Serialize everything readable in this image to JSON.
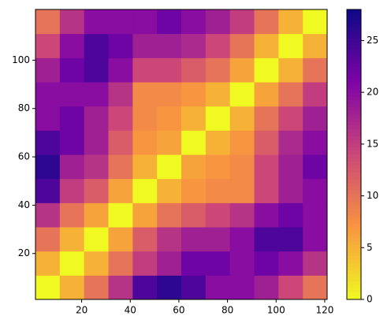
{
  "chart_data": {
    "type": "heatmap",
    "colormap": "plasma_r",
    "x": [
      6,
      16,
      26,
      36,
      46,
      56,
      66,
      76,
      86,
      96,
      106,
      116
    ],
    "y": [
      6,
      16,
      26,
      36,
      46,
      56,
      66,
      76,
      86,
      96,
      106,
      116
    ],
    "z": [
      [
        0,
        5,
        10,
        16,
        24,
        26,
        24,
        20,
        20,
        18,
        14,
        10
      ],
      [
        5,
        0,
        5,
        10,
        15,
        18,
        22,
        22,
        20,
        22,
        20,
        16
      ],
      [
        10,
        5,
        0,
        6,
        12,
        16,
        18,
        18,
        20,
        24,
        24,
        20
      ],
      [
        16,
        10,
        6,
        0,
        6,
        10,
        12,
        14,
        16,
        20,
        22,
        20
      ],
      [
        24,
        15,
        12,
        6,
        0,
        5,
        7,
        8,
        8,
        14,
        18,
        20
      ],
      [
        26,
        18,
        16,
        10,
        5,
        0,
        6,
        7,
        8,
        14,
        18,
        22
      ],
      [
        24,
        22,
        18,
        12,
        7,
        6,
        0,
        5,
        7,
        12,
        17,
        20
      ],
      [
        20,
        22,
        18,
        14,
        8,
        7,
        5,
        0,
        5,
        10,
        14,
        18
      ],
      [
        20,
        20,
        20,
        16,
        8,
        8,
        7,
        5,
        0,
        6,
        10,
        15
      ],
      [
        18,
        22,
        24,
        20,
        14,
        14,
        12,
        10,
        6,
        0,
        5,
        10
      ],
      [
        14,
        20,
        24,
        22,
        18,
        18,
        17,
        14,
        10,
        5,
        0,
        5
      ],
      [
        10,
        16,
        20,
        20,
        20,
        22,
        20,
        18,
        15,
        10,
        5,
        0
      ]
    ],
    "xlim": [
      1,
      121
    ],
    "ylim": [
      1,
      121
    ],
    "xticks": [
      20,
      40,
      60,
      80,
      100,
      120
    ],
    "yticks": [
      20,
      40,
      60,
      80,
      100
    ],
    "zlim": [
      0,
      28
    ],
    "zticks": [
      0,
      5,
      10,
      15,
      20,
      25
    ]
  }
}
